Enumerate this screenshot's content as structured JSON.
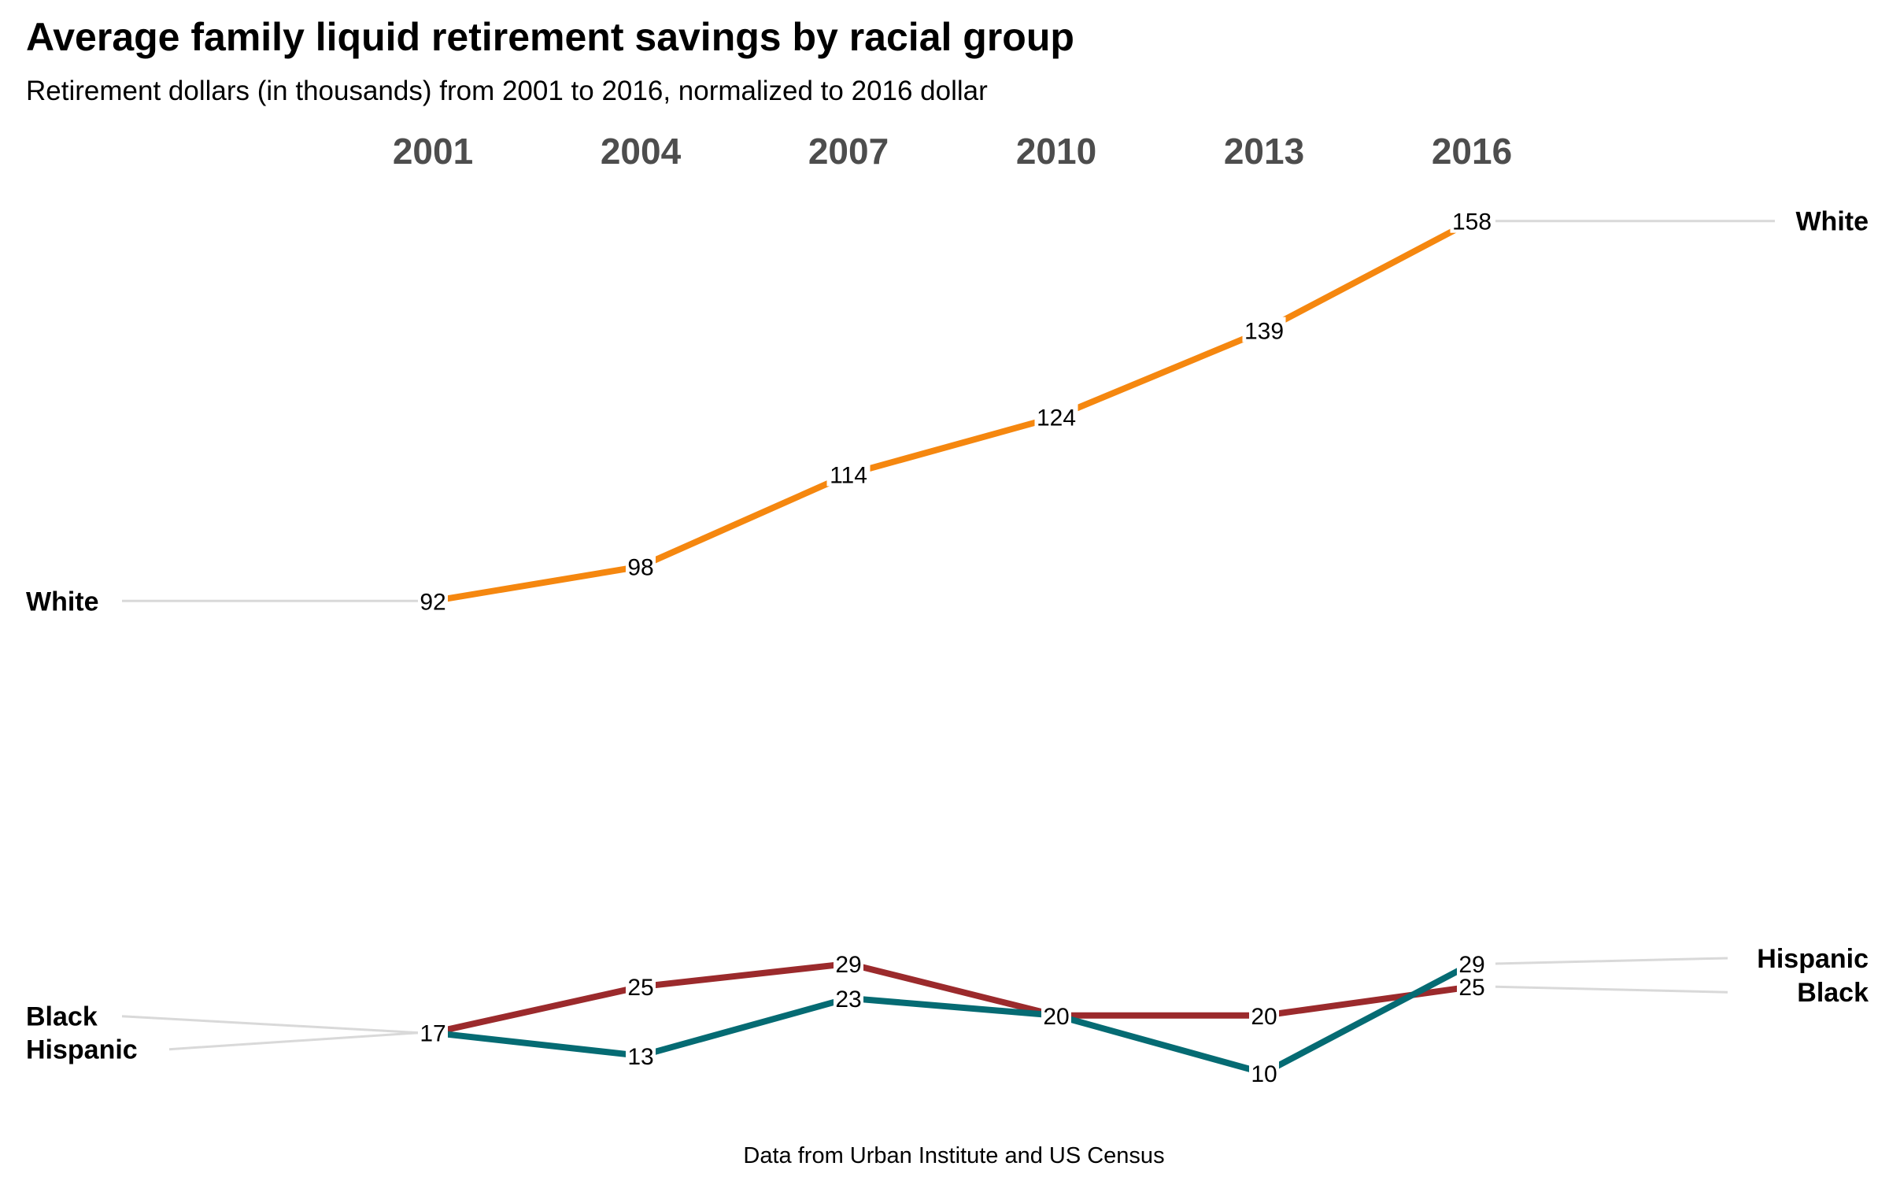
{
  "chart_data": {
    "type": "line",
    "title": "Average family liquid retirement savings by racial group",
    "subtitle": "Retirement dollars (in thousands) from 2001 to 2016, normalized to 2016 dollar",
    "caption": "Data from Urban Institute and US Census",
    "categories": [
      "2001",
      "2004",
      "2007",
      "2010",
      "2013",
      "2016"
    ],
    "series": [
      {
        "name": "White",
        "color": "#f5870f",
        "values": [
          92,
          98,
          114,
          124,
          139,
          158
        ]
      },
      {
        "name": "Black",
        "color": "#9b2a2c",
        "values": [
          17,
          25,
          29,
          20,
          20,
          25
        ]
      },
      {
        "name": "Hispanic",
        "color": "#056b73",
        "values": [
          17,
          13,
          23,
          20,
          10,
          29
        ]
      }
    ],
    "connector_color": "#d9d9d9",
    "grid": false,
    "legend": "none"
  }
}
